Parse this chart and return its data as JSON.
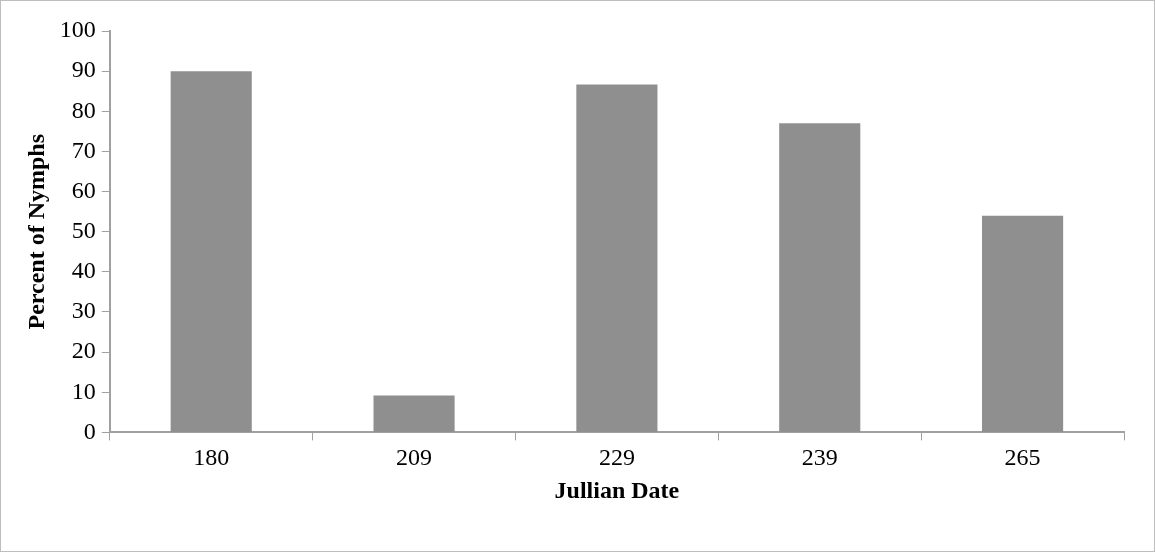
{
  "chart_data": {
    "type": "bar",
    "xlabel": "Jullian Date",
    "ylabel": "Percent of Nymphs",
    "categories": [
      "180",
      "209",
      "229",
      "239",
      "265"
    ],
    "values": [
      90,
      9.2,
      86.7,
      77,
      54
    ],
    "color": "#8f8f8f",
    "ylim": [
      0,
      100
    ],
    "yticks": [
      0,
      10,
      20,
      30,
      40,
      50,
      60,
      70,
      80,
      90,
      100
    ],
    "grid": false,
    "legend": false
  }
}
